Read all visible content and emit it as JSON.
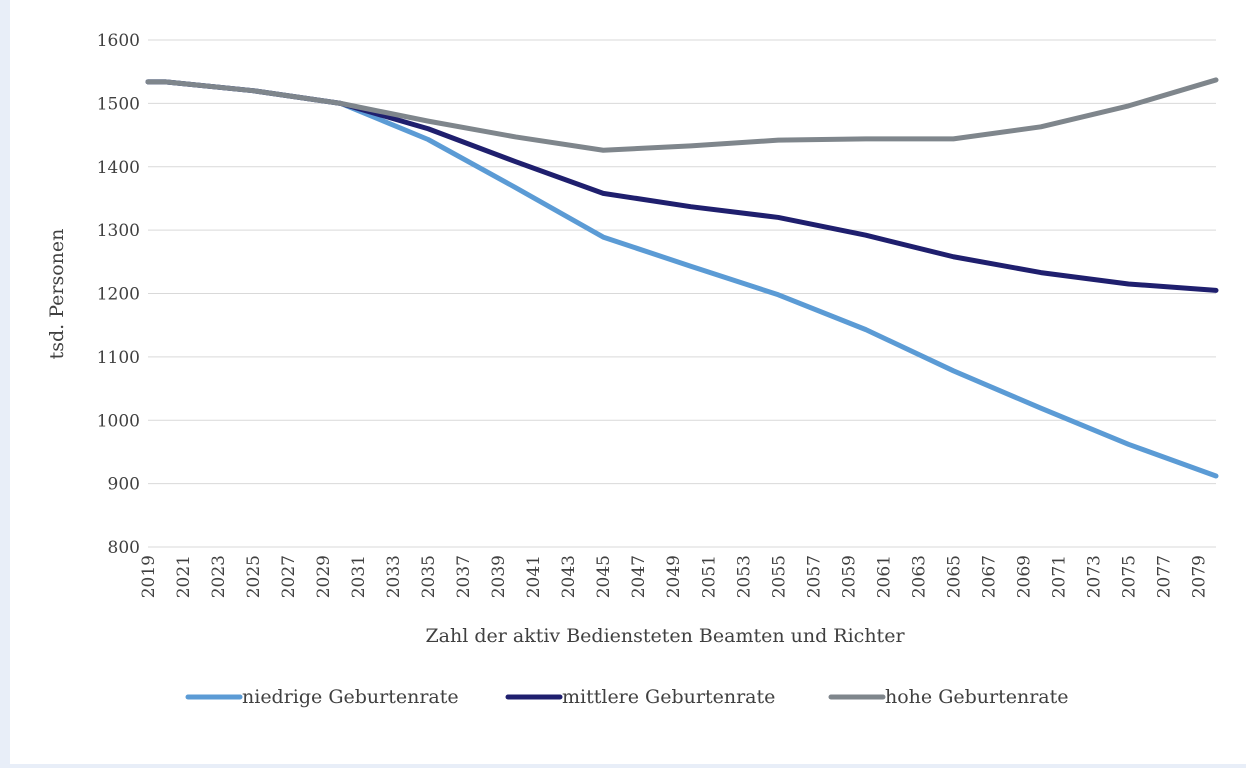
{
  "chart_data": {
    "type": "line",
    "title": "",
    "xlabel": "Zahl der aktiv Bediensteten Beamten und Richter",
    "ylabel": "tsd. Personen",
    "ylim": [
      800,
      1600
    ],
    "yticks": [
      800,
      900,
      1000,
      1100,
      1200,
      1300,
      1400,
      1500,
      1600
    ],
    "xlim": [
      2019,
      2080
    ],
    "xticks": [
      2019,
      2021,
      2023,
      2025,
      2027,
      2029,
      2031,
      2033,
      2035,
      2037,
      2039,
      2041,
      2043,
      2045,
      2047,
      2049,
      2051,
      2053,
      2055,
      2057,
      2059,
      2061,
      2063,
      2065,
      2067,
      2069,
      2071,
      2073,
      2075,
      2077,
      2079
    ],
    "grid": true,
    "legend_position": "bottom",
    "x": [
      2019,
      2020,
      2025,
      2030,
      2035,
      2040,
      2045,
      2050,
      2055,
      2060,
      2065,
      2070,
      2075,
      2080
    ],
    "series": [
      {
        "name": "niedrige Geburtenrate",
        "color": "#5b9bd5",
        "values": [
          1534,
          1534,
          1520,
          1500,
          1443,
          1367,
          1289,
          1243,
          1198,
          1143,
          1078,
          1019,
          962,
          912
        ]
      },
      {
        "name": "mittlere Geburtenrate",
        "color": "#1f1f6e",
        "values": [
          1534,
          1534,
          1520,
          1500,
          1460,
          1408,
          1358,
          1337,
          1320,
          1292,
          1258,
          1233,
          1215,
          1205
        ]
      },
      {
        "name": "hohe Geburtenrate",
        "color": "#7f868c",
        "values": [
          1534,
          1534,
          1520,
          1500,
          1472,
          1447,
          1426,
          1433,
          1442,
          1444,
          1444,
          1463,
          1496,
          1537
        ]
      }
    ]
  }
}
